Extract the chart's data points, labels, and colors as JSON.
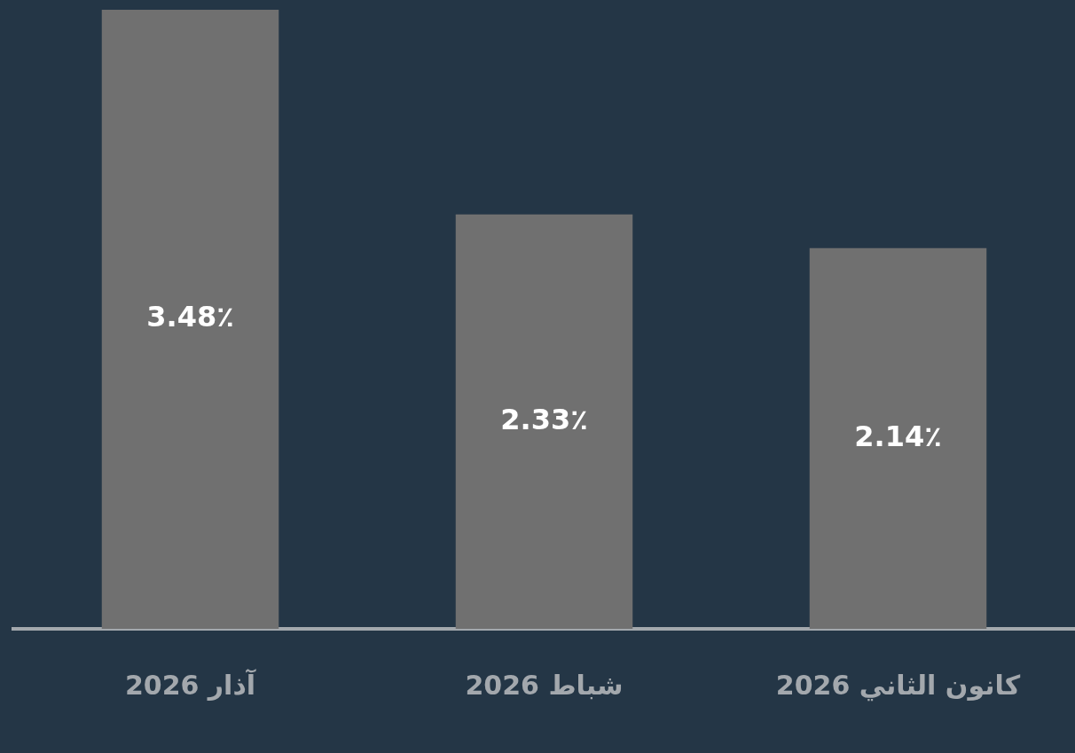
{
  "chart_data": {
    "type": "bar",
    "categories": [
      "آذار 2026",
      "شباط 2026",
      "كانون الثاني 2026"
    ],
    "values": [
      3.48,
      2.33,
      2.14
    ],
    "value_labels": [
      "3.48٪",
      "2.33٪",
      "2.14٪"
    ],
    "color": "#707070",
    "grid": false,
    "legend": false
  }
}
